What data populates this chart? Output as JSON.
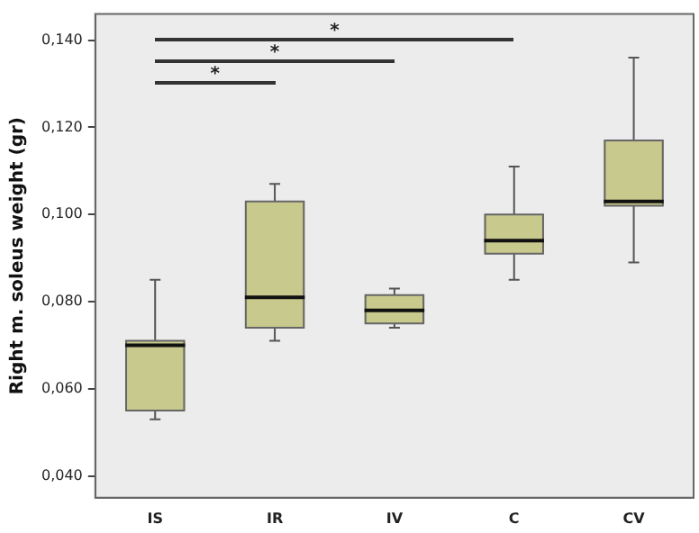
{
  "chart_data": {
    "type": "box",
    "ylabel": "Right m. soleus weight (gr)",
    "categories": [
      "IS",
      "IR",
      "IV",
      "C",
      "CV"
    ],
    "color": "#c8c98c",
    "boxes": [
      {
        "low": 0.053,
        "q1": 0.055,
        "median": 0.07,
        "q3": 0.071,
        "high": 0.085
      },
      {
        "low": 0.071,
        "q1": 0.074,
        "median": 0.081,
        "q3": 0.103,
        "high": 0.107
      },
      {
        "low": 0.074,
        "q1": 0.075,
        "median": 0.078,
        "q3": 0.0815,
        "high": 0.083
      },
      {
        "low": 0.085,
        "q1": 0.091,
        "median": 0.094,
        "q3": 0.1,
        "high": 0.111
      },
      {
        "low": 0.089,
        "q1": 0.102,
        "median": 0.103,
        "q3": 0.117,
        "high": 0.136
      }
    ],
    "ylim": [
      0.035,
      0.146
    ],
    "yticks": [
      {
        "value": 0.04,
        "label": "0,040"
      },
      {
        "value": 0.06,
        "label": "0,060"
      },
      {
        "value": 0.08,
        "label": "0,080"
      },
      {
        "value": 0.1,
        "label": "0,100"
      },
      {
        "value": 0.12,
        "label": "0,120"
      },
      {
        "value": 0.14,
        "label": "0,140"
      }
    ],
    "annotations": [
      "*",
      "*",
      "*"
    ],
    "grid": false,
    "legend": false
  }
}
